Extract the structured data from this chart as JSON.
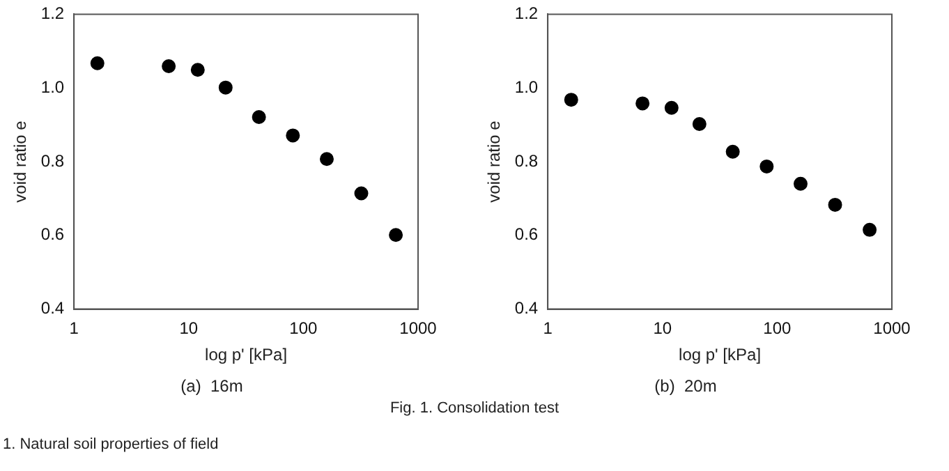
{
  "chart_data": [
    {
      "type": "scatter",
      "title": "(a)  16m",
      "xlabel": "log p' [kPa]",
      "ylabel": "void ratio e",
      "log": "x",
      "grid": false,
      "legend": false,
      "marker": "circle",
      "x": [
        1.6,
        6.7,
        12,
        21,
        41,
        81,
        160,
        320,
        640
      ],
      "series": [
        {
          "color": "#000000",
          "values": [
            1.067,
            1.059,
            1.049,
            1.001,
            0.921,
            0.871,
            0.807,
            0.714,
            0.601
          ]
        }
      ],
      "xlim": [
        1,
        1000
      ],
      "xticks": [
        1,
        10,
        100,
        1000
      ],
      "ylim": [
        0.4,
        1.2
      ],
      "yticks": [
        {
          "value": 0.4,
          "label": "0.4"
        },
        {
          "value": 0.6,
          "label": "0.6"
        },
        {
          "value": 0.8,
          "label": "0.8"
        },
        {
          "value": 1.0,
          "label": "1.0"
        },
        {
          "value": 1.2,
          "label": "1.2"
        }
      ],
      "annotations": [
        "Fig. 1. Consolidation test",
        "1. Natural soil properties of field"
      ]
    },
    {
      "type": "scatter",
      "title": "(b)  20m",
      "xlabel": "log p' [kPa]",
      "ylabel": "void ratio e",
      "log": "x",
      "grid": false,
      "legend": false,
      "marker": "circle",
      "x": [
        1.6,
        6.7,
        12,
        21,
        41,
        81,
        160,
        320,
        640
      ],
      "series": [
        {
          "color": "#000000",
          "values": [
            0.968,
            0.958,
            0.946,
            0.902,
            0.827,
            0.787,
            0.74,
            0.683,
            0.615
          ]
        }
      ],
      "xlim": [
        1,
        1000
      ],
      "xticks": [
        1,
        10,
        100,
        1000
      ],
      "ylim": [
        0.4,
        1.2
      ],
      "yticks": [
        {
          "value": 0.4,
          "label": "0.4"
        },
        {
          "value": 0.6,
          "label": "0.6"
        },
        {
          "value": 0.8,
          "label": "0.8"
        },
        {
          "value": 1.0,
          "label": "1.0"
        },
        {
          "value": 1.2,
          "label": "1.2"
        }
      ]
    }
  ]
}
